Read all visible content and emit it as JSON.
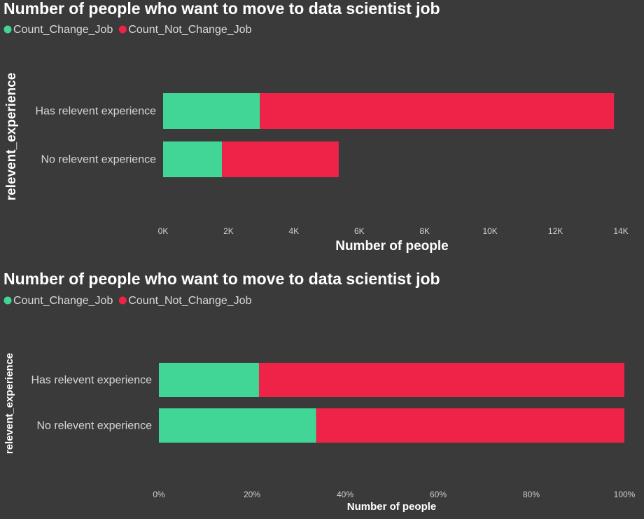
{
  "colors": {
    "background": "#3a3a3a",
    "change": "#41d695",
    "not_change": "#ee2347"
  },
  "chart_data": [
    {
      "type": "bar",
      "orientation": "horizontal",
      "stacked": true,
      "title": "Number of people who want to move to data scientist job",
      "ylabel": "relevent_experience",
      "xlabel": "Number of people",
      "categories": [
        "Has relevent experience",
        "No relevent experience"
      ],
      "series": [
        {
          "name": "Count_Change_Job",
          "color": "#41d695",
          "values": [
            2960,
            1800
          ]
        },
        {
          "name": "Count_Not_Change_Job",
          "color": "#ee2347",
          "values": [
            10830,
            3570
          ]
        }
      ],
      "xlim": [
        0,
        14000
      ],
      "xticks": [
        0,
        2000,
        4000,
        6000,
        8000,
        10000,
        12000,
        14000
      ],
      "xtick_labels": [
        "0K",
        "2K",
        "4K",
        "6K",
        "8K",
        "10K",
        "12K",
        "14K"
      ],
      "legend_position": "top-left"
    },
    {
      "type": "bar",
      "orientation": "horizontal",
      "stacked": true,
      "percent": true,
      "title": "Number of people who want to move to data scientist job",
      "ylabel": "relevent_experience",
      "xlabel": "Number of people",
      "categories": [
        "Has relevent experience",
        "No relevent experience"
      ],
      "series": [
        {
          "name": "Count_Change_Job",
          "color": "#41d695",
          "values": [
            21.5,
            33.8
          ]
        },
        {
          "name": "Count_Not_Change_Job",
          "color": "#ee2347",
          "values": [
            78.5,
            66.2
          ]
        }
      ],
      "xlim": [
        0,
        100
      ],
      "xticks": [
        0,
        20,
        40,
        60,
        80,
        100
      ],
      "xtick_labels": [
        "0%",
        "20%",
        "40%",
        "60%",
        "80%",
        "100%"
      ],
      "legend_position": "top-left"
    }
  ]
}
